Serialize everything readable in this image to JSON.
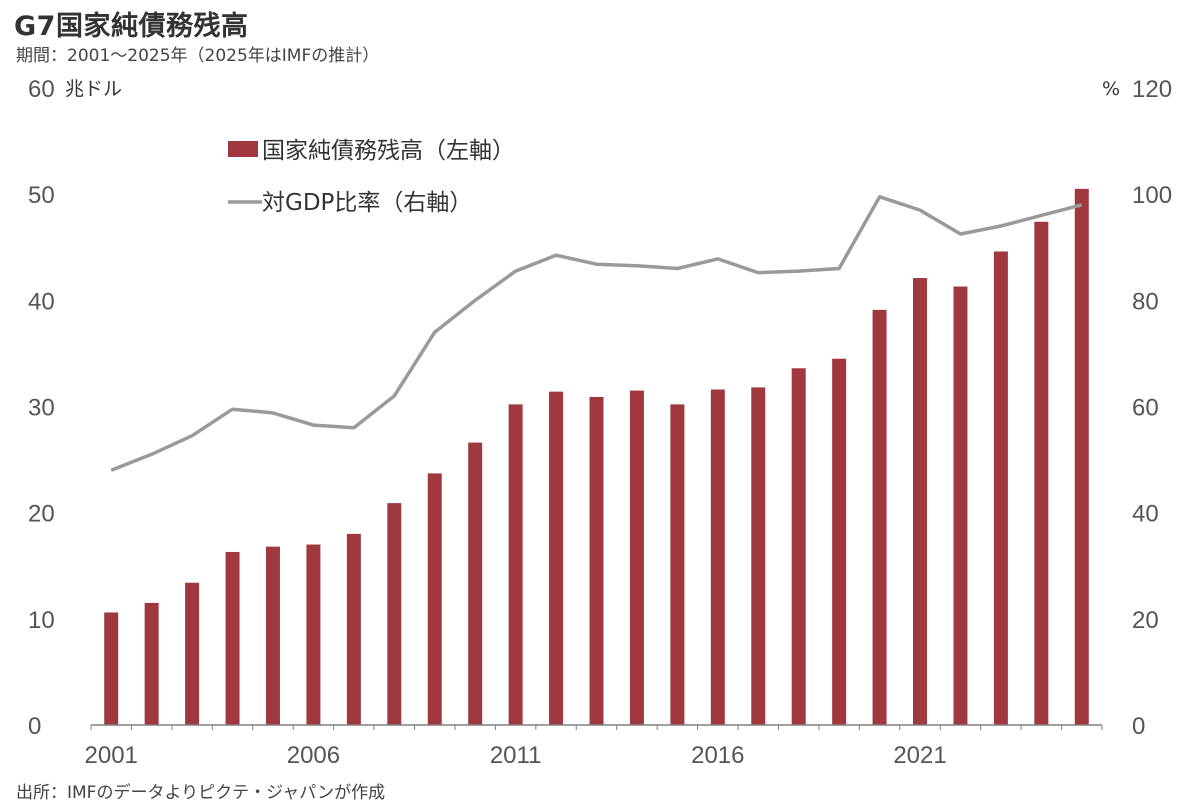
{
  "header": {
    "title": "G7国家純債務残高",
    "subtitle": "期間：2001～2025年（2025年はIMFの推計）"
  },
  "footer": {
    "source": "出所：IMFのデータよりピクテ・ジャパンが作成"
  },
  "colors": {
    "bar": "#a0393f",
    "line": "#9a9a9a",
    "axis": "#808080"
  },
  "chart_data": {
    "type": "bar",
    "x": [
      2001,
      2002,
      2003,
      2004,
      2005,
      2006,
      2007,
      2008,
      2009,
      2010,
      2011,
      2012,
      2013,
      2014,
      2015,
      2016,
      2017,
      2018,
      2019,
      2020,
      2021,
      2022,
      2023,
      2024,
      2025
    ],
    "x_tick_labels": [
      "2001",
      "2006",
      "2011",
      "2016",
      "2021"
    ],
    "left_axis": {
      "unit": "兆ドル",
      "ylim": [
        0,
        60
      ],
      "ticks": [
        "0",
        "10",
        "20",
        "30",
        "40",
        "50",
        "60"
      ]
    },
    "right_axis": {
      "unit": "%",
      "ylim": [
        0,
        120
      ],
      "ticks": [
        "0",
        "20",
        "40",
        "60",
        "80",
        "100",
        "120"
      ]
    },
    "legend_placement": "top-center",
    "series": [
      {
        "name": "国家純債務残高（左軸）",
        "type": "bar",
        "axis": "left",
        "values": [
          10.6,
          11.5,
          13.4,
          16.3,
          16.8,
          17.0,
          18.0,
          20.9,
          23.7,
          26.6,
          30.2,
          31.4,
          30.9,
          31.5,
          30.2,
          31.6,
          31.8,
          33.6,
          34.5,
          39.1,
          42.1,
          41.3,
          44.6,
          47.4,
          50.5
        ]
      },
      {
        "name": "対GDP比率（右軸）",
        "type": "line",
        "axis": "right",
        "values": [
          48.0,
          51.0,
          54.5,
          59.5,
          58.8,
          56.5,
          56.0,
          62.0,
          74.0,
          80.0,
          85.5,
          88.5,
          86.8,
          86.5,
          86.0,
          87.8,
          85.2,
          85.5,
          86.0,
          99.5,
          97.0,
          92.5,
          94.0,
          96.0,
          98.0
        ]
      }
    ]
  }
}
